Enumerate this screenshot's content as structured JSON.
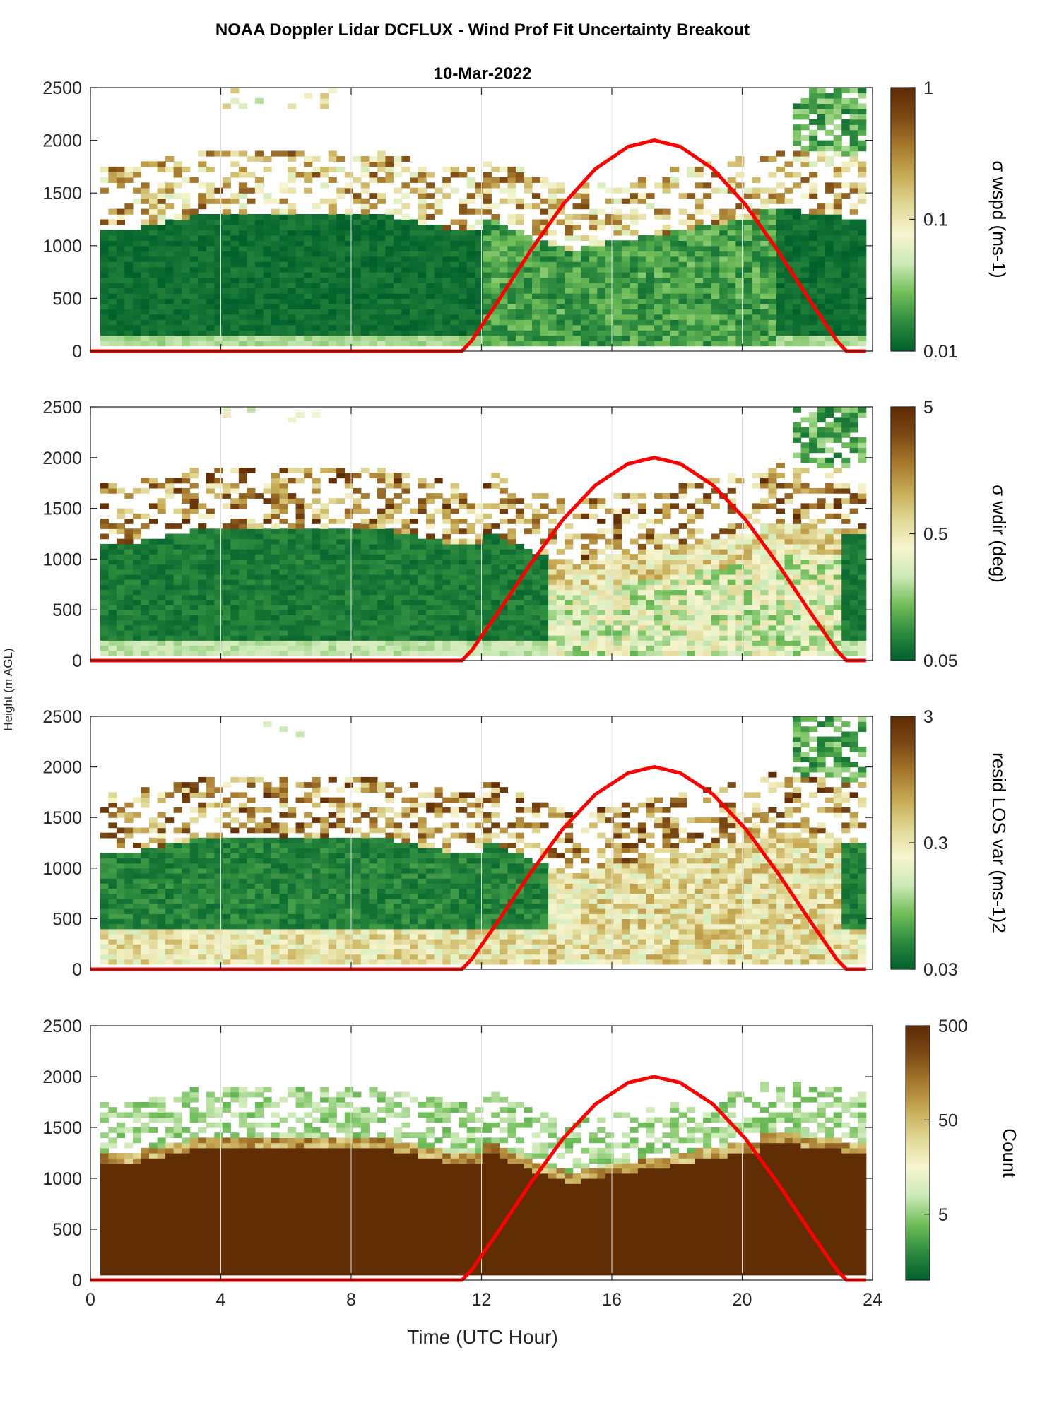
{
  "figure": {
    "title": "NOAA Doppler Lidar DCFLUX - Wind Prof Fit Uncertainty Breakout",
    "date": "10-Mar-2022",
    "xlabel": "Time (UTC Hour)",
    "ylabel": "Height (m AGL)"
  },
  "colors": {
    "cmap": [
      "#00602b",
      "#2e8c3f",
      "#72bf5a",
      "#cdeab8",
      "#f7f5cf",
      "#e0d895",
      "#c7ab55",
      "#a6792d",
      "#7c4a14",
      "#5e2a04"
    ],
    "sun_curve": "#ff0000",
    "axes": "#262626",
    "grid": "#dfdfdf"
  },
  "chart_data": [
    {
      "type": "heatmap",
      "panel": "wspd",
      "colorbar_label": "σ wspd (ms-1)",
      "colorbar_scale": "log",
      "clim": [
        0.01,
        1
      ],
      "colorbar_ticks": [
        "1",
        "0.1",
        "0.01"
      ],
      "colorbar_tick_values": [
        1,
        0.1,
        0.01
      ],
      "xlim": [
        0,
        24
      ],
      "ylim": [
        0,
        2500
      ],
      "x_ticks": [
        0,
        4,
        8,
        12,
        16,
        20,
        24
      ],
      "y_ticks": [
        0,
        500,
        1000,
        1500,
        2000,
        2500
      ]
    },
    {
      "type": "heatmap",
      "panel": "wdir",
      "colorbar_label": "σ wdir (deg)",
      "colorbar_scale": "log",
      "clim": [
        0.05,
        5
      ],
      "colorbar_ticks": [
        "5",
        "0.5",
        "0.05"
      ],
      "colorbar_tick_values": [
        5,
        0.5,
        0.05
      ],
      "xlim": [
        0,
        24
      ],
      "ylim": [
        0,
        2500
      ],
      "x_ticks": [
        0,
        4,
        8,
        12,
        16,
        20,
        24
      ],
      "y_ticks": [
        0,
        500,
        1000,
        1500,
        2000,
        2500
      ]
    },
    {
      "type": "heatmap",
      "panel": "residLOS",
      "colorbar_label": "resid LOS var (ms-1)2",
      "colorbar_scale": "log",
      "clim": [
        0.03,
        3
      ],
      "colorbar_ticks": [
        "3",
        "0.3",
        "0.03"
      ],
      "colorbar_tick_values": [
        3,
        0.3,
        0.03
      ],
      "xlim": [
        0,
        24
      ],
      "ylim": [
        0,
        2500
      ],
      "x_ticks": [
        0,
        4,
        8,
        12,
        16,
        20,
        24
      ],
      "y_ticks": [
        0,
        500,
        1000,
        1500,
        2000,
        2500
      ]
    },
    {
      "type": "heatmap",
      "panel": "count",
      "colorbar_label": "Count",
      "colorbar_scale": "log",
      "clim": [
        1,
        500
      ],
      "colorbar_ticks": [
        "500",
        "50",
        "5"
      ],
      "colorbar_tick_values": [
        500,
        50,
        5
      ],
      "xlim": [
        0,
        24
      ],
      "ylim": [
        0,
        2500
      ],
      "x_ticks": [
        0,
        4,
        8,
        12,
        16,
        20,
        24
      ],
      "y_ticks": [
        0,
        500,
        1000,
        1500,
        2000,
        2500
      ]
    }
  ],
  "sun_curve": {
    "type": "line",
    "x": [
      0,
      11.4,
      11.7,
      12.5,
      13.5,
      14.5,
      15.5,
      16.5,
      17.3,
      18.1,
      19.1,
      20.1,
      21.1,
      22.1,
      22.9,
      23.2,
      23.8
    ],
    "y": [
      0,
      0,
      100,
      470,
      950,
      1390,
      1730,
      1940,
      2000,
      1940,
      1730,
      1390,
      950,
      470,
      100,
      0,
      0
    ]
  }
}
